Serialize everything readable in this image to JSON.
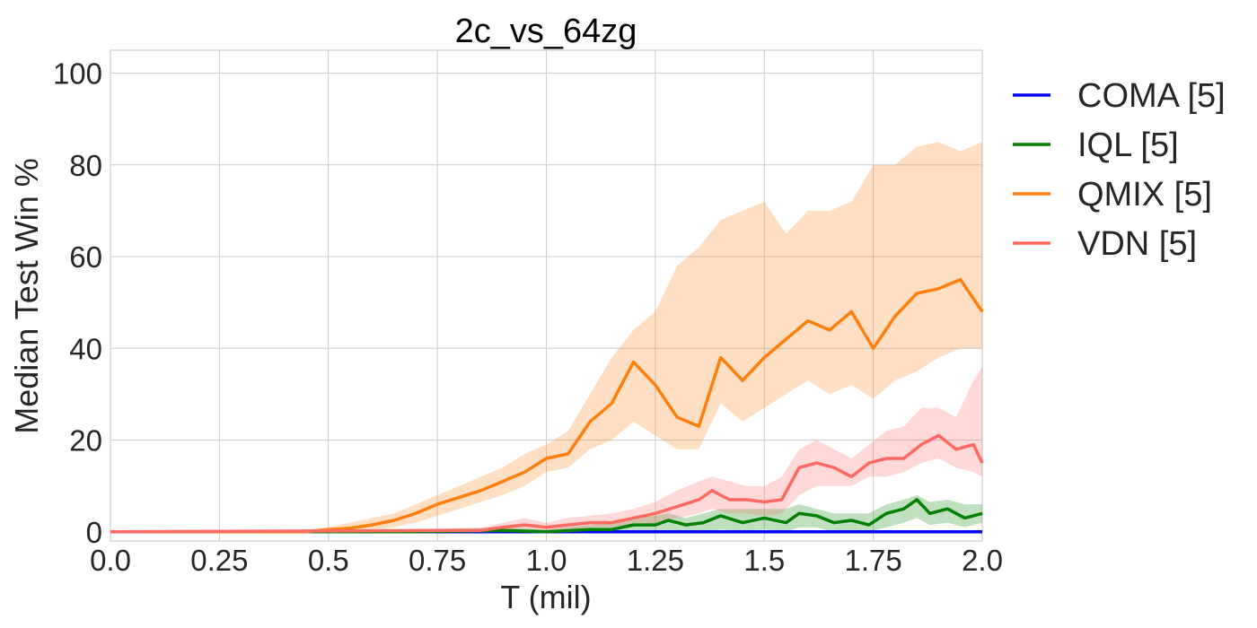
{
  "chart_data": {
    "type": "line",
    "title": "2c_vs_64zg",
    "xlabel": "T (mil)",
    "ylabel": "Median Test Win %",
    "xlim": [
      0,
      2.0
    ],
    "ylim": [
      -2,
      105
    ],
    "xticks": [
      "0.0",
      "0.25",
      "0.5",
      "0.75",
      "1.0",
      "1.25",
      "1.5",
      "1.75",
      "2.0"
    ],
    "xtick_values": [
      0,
      0.25,
      0.5,
      0.75,
      1.0,
      1.25,
      1.5,
      1.75,
      2.0
    ],
    "yticks": [
      "0",
      "20",
      "40",
      "60",
      "80",
      "100"
    ],
    "ytick_values": [
      0,
      20,
      40,
      60,
      80,
      100
    ],
    "grid": true,
    "legend_position": "outside-right",
    "series": [
      {
        "name": "COMA [5]",
        "color": "#0000ff",
        "x": [
          0,
          0.5,
          1.0,
          1.5,
          2.0
        ],
        "y": [
          0,
          0,
          0,
          0,
          0
        ],
        "lower": [
          0,
          0,
          0,
          0,
          0
        ],
        "upper": [
          0,
          0,
          0,
          0,
          0
        ]
      },
      {
        "name": "IQL [5]",
        "color": "#008000",
        "x": [
          0,
          0.7,
          0.9,
          1.0,
          1.1,
          1.15,
          1.2,
          1.25,
          1.28,
          1.32,
          1.36,
          1.4,
          1.45,
          1.5,
          1.55,
          1.58,
          1.62,
          1.66,
          1.7,
          1.74,
          1.78,
          1.82,
          1.85,
          1.88,
          1.92,
          1.96,
          2.0
        ],
        "y": [
          0,
          0,
          0.3,
          0,
          0.5,
          0.5,
          1.5,
          1.5,
          2.5,
          1.5,
          2,
          3.5,
          2,
          3,
          2,
          4,
          3.5,
          2,
          2.5,
          1.5,
          4,
          5,
          7,
          4,
          5,
          3,
          4
        ],
        "lower": [
          0,
          0,
          0,
          0,
          0,
          0,
          0,
          0,
          0,
          0,
          0,
          0.5,
          0,
          0.5,
          0,
          1,
          1,
          0,
          0,
          0,
          1,
          2,
          3,
          1.5,
          2,
          1,
          2
        ],
        "upper": [
          0,
          0.5,
          1,
          0.5,
          1.5,
          2,
          3,
          3.5,
          4,
          3,
          4,
          5,
          5,
          5,
          5,
          6,
          5,
          4,
          4,
          4,
          6,
          7,
          8,
          6.5,
          7,
          6,
          6
        ]
      },
      {
        "name": "QMIX [5]",
        "color": "#ff7f0e",
        "x": [
          0,
          0.45,
          0.5,
          0.55,
          0.6,
          0.65,
          0.7,
          0.75,
          0.8,
          0.85,
          0.9,
          0.95,
          1.0,
          1.05,
          1.1,
          1.15,
          1.2,
          1.25,
          1.3,
          1.35,
          1.4,
          1.45,
          1.5,
          1.55,
          1.6,
          1.65,
          1.7,
          1.75,
          1.8,
          1.85,
          1.9,
          1.95,
          2.0
        ],
        "y": [
          0,
          0,
          0.5,
          0.8,
          1.5,
          2.5,
          4,
          6,
          7.5,
          9,
          11,
          13,
          16,
          17,
          24,
          28,
          37,
          32,
          25,
          23,
          38,
          33,
          38,
          42,
          46,
          44,
          48,
          40,
          47,
          52,
          53,
          55,
          48
        ],
        "lower": [
          0,
          0,
          0,
          0,
          0.5,
          1,
          2,
          3.5,
          5,
          6.5,
          8,
          10,
          13,
          14,
          18,
          20,
          24,
          21,
          18,
          18,
          28,
          24,
          27,
          30,
          33,
          30,
          32,
          29,
          33,
          35,
          38,
          40,
          40
        ],
        "upper": [
          0,
          0.5,
          1,
          2,
          3,
          4,
          6,
          8,
          10,
          12,
          14,
          17,
          19,
          22,
          30,
          38,
          44,
          48,
          58,
          62,
          68,
          70,
          72,
          65,
          70,
          70,
          72,
          80,
          80,
          84,
          85,
          83,
          85
        ]
      },
      {
        "name": "VDN [5]",
        "color": "#ff6961",
        "x": [
          0,
          0.85,
          0.9,
          0.95,
          1.0,
          1.05,
          1.1,
          1.15,
          1.2,
          1.25,
          1.3,
          1.35,
          1.38,
          1.42,
          1.46,
          1.5,
          1.54,
          1.58,
          1.62,
          1.66,
          1.7,
          1.74,
          1.78,
          1.82,
          1.86,
          1.9,
          1.94,
          1.98,
          2.0
        ],
        "y": [
          0,
          0.3,
          1,
          1.5,
          1,
          1.5,
          2,
          2,
          3,
          4,
          5.5,
          7,
          9,
          7,
          7,
          6.5,
          7,
          14,
          15,
          14,
          12,
          15,
          16,
          16,
          19,
          21,
          18,
          19,
          15
        ],
        "lower": [
          0,
          0,
          0.3,
          0.5,
          0.3,
          0.5,
          1,
          1,
          1.5,
          2,
          3,
          4,
          5,
          4,
          4,
          3.5,
          4,
          8,
          10,
          10,
          10,
          12,
          12,
          13,
          15,
          16,
          14,
          13,
          12
        ],
        "upper": [
          0,
          0.8,
          2,
          3,
          2,
          3,
          3.5,
          4,
          5,
          6.5,
          9,
          11,
          12,
          11,
          10,
          10,
          12,
          18,
          20,
          18,
          16,
          19,
          22,
          23,
          27,
          27,
          25,
          33,
          36
        ]
      }
    ]
  }
}
